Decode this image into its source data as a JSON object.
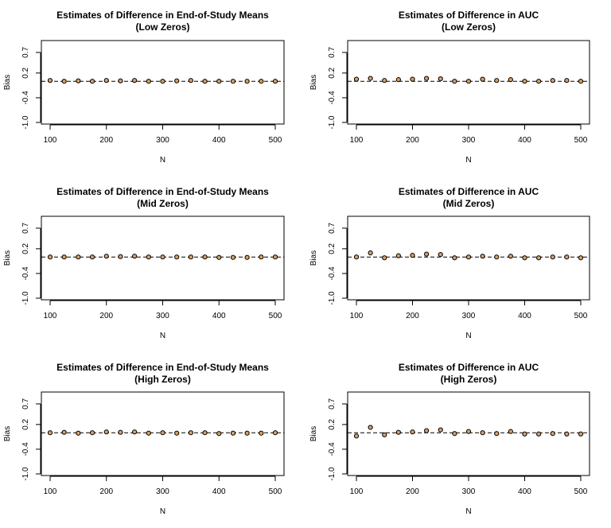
{
  "chart_data": [
    {
      "type": "scatter",
      "title": "Estimates of Difference in End-of-Study Means",
      "subtitle": "(Low Zeros)",
      "xlabel": "N",
      "ylabel": "Bias",
      "xlim": [
        100,
        500
      ],
      "ylim": [
        -1.0,
        0.95
      ],
      "xticks": [
        100,
        200,
        300,
        400,
        500
      ],
      "xtick_labels": [
        "100",
        "200",
        "300",
        "400",
        "500"
      ],
      "yticks": [
        -1.0,
        -0.4,
        0.2,
        0.7
      ],
      "ytick_labels": [
        "-1.0",
        "-0.4",
        "0.2",
        "0.7"
      ],
      "reference_line": 0,
      "marker_color": "#d9a066",
      "x": [
        100,
        125,
        150,
        175,
        200,
        225,
        250,
        275,
        300,
        325,
        350,
        375,
        400,
        425,
        450,
        475,
        500
      ],
      "y": [
        0.02,
        0.0,
        0.01,
        0.0,
        0.02,
        0.01,
        0.02,
        0.0,
        0.0,
        0.01,
        0.02,
        0.0,
        0.0,
        0.0,
        0.0,
        0.0,
        0.0
      ]
    },
    {
      "type": "scatter",
      "title": "Estimates of Difference in AUC",
      "subtitle": "(Low Zeros)",
      "xlabel": "N",
      "ylabel": "Bias",
      "xlim": [
        100,
        500
      ],
      "ylim": [
        -1.0,
        0.95
      ],
      "xticks": [
        100,
        200,
        300,
        400,
        500
      ],
      "xtick_labels": [
        "100",
        "200",
        "300",
        "400",
        "500"
      ],
      "yticks": [
        -1.0,
        -0.4,
        0.2,
        0.7
      ],
      "ytick_labels": [
        "-1.0",
        "-0.4",
        "0.2",
        "0.7"
      ],
      "reference_line": 0,
      "marker_color": "#d9a066",
      "x": [
        100,
        125,
        150,
        175,
        200,
        225,
        250,
        275,
        300,
        325,
        350,
        375,
        400,
        425,
        450,
        475,
        500
      ],
      "y": [
        0.05,
        0.07,
        0.02,
        0.04,
        0.05,
        0.07,
        0.06,
        0.0,
        0.0,
        0.05,
        0.02,
        0.04,
        0.0,
        0.0,
        0.02,
        0.02,
        0.0
      ]
    },
    {
      "type": "scatter",
      "title": "Estimates of Difference in End-of-Study Means",
      "subtitle": "(Mid Zeros)",
      "xlabel": "N",
      "ylabel": "Bias",
      "xlim": [
        100,
        500
      ],
      "ylim": [
        -1.0,
        0.95
      ],
      "xticks": [
        100,
        200,
        300,
        400,
        500
      ],
      "xtick_labels": [
        "100",
        "200",
        "300",
        "400",
        "500"
      ],
      "yticks": [
        -1.0,
        -0.4,
        0.2,
        0.7
      ],
      "ytick_labels": [
        "-1.0",
        "-0.4",
        "0.2",
        "0.7"
      ],
      "reference_line": 0,
      "marker_color": "#d9a066",
      "x": [
        100,
        125,
        150,
        175,
        200,
        225,
        250,
        275,
        300,
        325,
        350,
        375,
        400,
        425,
        450,
        475,
        500
      ],
      "y": [
        0.0,
        0.0,
        0.0,
        0.0,
        0.02,
        0.01,
        0.02,
        0.0,
        0.0,
        0.0,
        0.0,
        0.0,
        -0.01,
        -0.01,
        -0.01,
        0.0,
        0.0
      ]
    },
    {
      "type": "scatter",
      "title": "Estimates of Difference in AUC",
      "subtitle": "(Mid Zeros)",
      "xlabel": "N",
      "ylabel": "Bias",
      "xlim": [
        100,
        500
      ],
      "ylim": [
        -1.0,
        0.95
      ],
      "xticks": [
        100,
        200,
        300,
        400,
        500
      ],
      "xtick_labels": [
        "100",
        "200",
        "300",
        "400",
        "500"
      ],
      "yticks": [
        -1.0,
        -0.4,
        0.2,
        0.7
      ],
      "ytick_labels": [
        "-1.0",
        "-0.4",
        "0.2",
        "0.7"
      ],
      "reference_line": 0,
      "marker_color": "#d9a066",
      "x": [
        100,
        125,
        150,
        175,
        200,
        225,
        250,
        275,
        300,
        325,
        350,
        375,
        400,
        425,
        450,
        475,
        500
      ],
      "y": [
        0.0,
        0.1,
        -0.02,
        0.03,
        0.04,
        0.07,
        0.06,
        -0.02,
        0.0,
        0.02,
        0.0,
        0.02,
        -0.02,
        -0.02,
        0.0,
        0.0,
        -0.02
      ]
    },
    {
      "type": "scatter",
      "title": "Estimates of Difference in End-of-Study Means",
      "subtitle": "(High Zeros)",
      "xlabel": "N",
      "ylabel": "Bias",
      "xlim": [
        100,
        500
      ],
      "ylim": [
        -1.0,
        0.95
      ],
      "xticks": [
        100,
        200,
        300,
        400,
        500
      ],
      "xtick_labels": [
        "100",
        "200",
        "300",
        "400",
        "500"
      ],
      "yticks": [
        -1.0,
        -0.4,
        0.2,
        0.7
      ],
      "ytick_labels": [
        "-1.0",
        "-0.4",
        "0.2",
        "0.7"
      ],
      "reference_line": 0,
      "marker_color": "#d9a066",
      "x": [
        100,
        125,
        150,
        175,
        200,
        225,
        250,
        275,
        300,
        325,
        350,
        375,
        400,
        425,
        450,
        475,
        500
      ],
      "y": [
        0.0,
        0.01,
        -0.01,
        0.0,
        0.02,
        0.01,
        0.02,
        -0.01,
        0.0,
        -0.01,
        0.0,
        0.0,
        -0.02,
        -0.01,
        -0.01,
        -0.01,
        0.0
      ]
    },
    {
      "type": "scatter",
      "title": "Estimates of Difference in AUC",
      "subtitle": "(High Zeros)",
      "xlabel": "N",
      "ylabel": "Bias",
      "xlim": [
        100,
        500
      ],
      "ylim": [
        -1.0,
        0.95
      ],
      "xticks": [
        100,
        200,
        300,
        400,
        500
      ],
      "xtick_labels": [
        "100",
        "200",
        "300",
        "400",
        "500"
      ],
      "yticks": [
        -1.0,
        -0.4,
        0.2,
        0.7
      ],
      "ytick_labels": [
        "-1.0",
        "-0.4",
        "0.2",
        "0.7"
      ],
      "reference_line": 0,
      "marker_color": "#d9a066",
      "x": [
        100,
        125,
        150,
        175,
        200,
        225,
        250,
        275,
        300,
        325,
        350,
        375,
        400,
        425,
        450,
        475,
        500
      ],
      "y": [
        -0.08,
        0.13,
        -0.05,
        0.01,
        0.02,
        0.05,
        0.07,
        -0.02,
        0.03,
        0.0,
        -0.02,
        0.03,
        -0.03,
        -0.03,
        -0.02,
        -0.03,
        -0.03
      ]
    }
  ]
}
